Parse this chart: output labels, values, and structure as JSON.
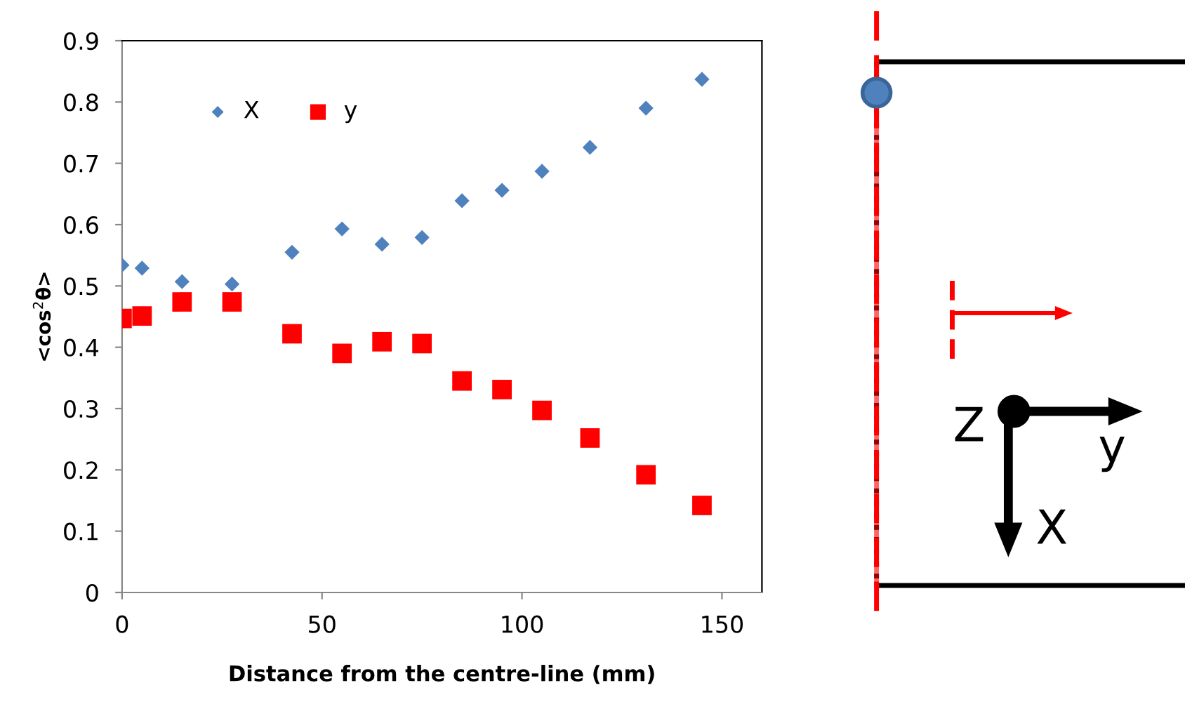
{
  "chart_data": {
    "type": "scatter",
    "xlabel": "Distance from the centre-line (mm)",
    "ylabel": "<cos$^{2}$θ>",
    "x": [
      0,
      5,
      15,
      27.5,
      42.5,
      55,
      65,
      75,
      85,
      95,
      105,
      117,
      131,
      145
    ],
    "series": [
      {
        "name": "X",
        "color": "#4f81bd",
        "marker": "diamond",
        "values": [
          0.534,
          0.529,
          0.507,
          0.503,
          0.555,
          0.593,
          0.568,
          0.579,
          0.639,
          0.656,
          0.687,
          0.726,
          0.79,
          0.837
        ]
      },
      {
        "name": "y",
        "color": "#ff0000",
        "marker": "square",
        "values": [
          0.447,
          0.451,
          0.474,
          0.474,
          0.422,
          0.39,
          0.409,
          0.406,
          0.345,
          0.331,
          0.297,
          0.252,
          0.192,
          0.142
        ]
      }
    ],
    "xlim": [
      0,
      160
    ],
    "xticks": [
      0,
      50,
      100,
      150
    ],
    "ylim": [
      0,
      0.9
    ],
    "yticks": [
      0,
      0.1,
      0.2,
      0.3,
      0.4,
      0.5,
      0.6,
      0.7,
      0.8,
      0.9
    ],
    "grid": false,
    "legend": "top left",
    "annotations": [
      "Z",
      "y",
      "X"
    ]
  }
}
